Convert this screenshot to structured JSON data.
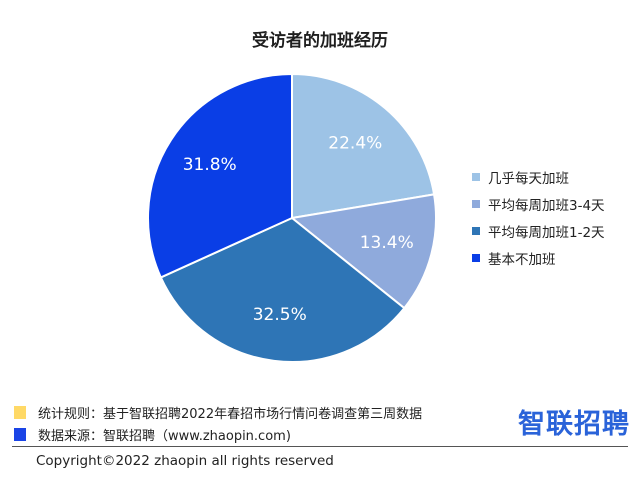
{
  "chart_data": {
    "type": "pie",
    "title": "受访者的加班经历",
    "slices": [
      {
        "label": "几乎每天加班",
        "value": 22.4,
        "display": "22.4%",
        "color": "#9dc3e6"
      },
      {
        "label": "平均每周加班3-4天",
        "value": 13.4,
        "display": "13.4%",
        "color": "#8faadc"
      },
      {
        "label": "平均每周加班1-2天",
        "value": 32.5,
        "display": "32.5%",
        "color": "#2e75b6"
      },
      {
        "label": "基本不加班",
        "value": 31.8,
        "display": "31.8%",
        "color": "#0a3ee6"
      }
    ],
    "start": "12 o'clock",
    "direction": "clockwise",
    "legend_position": "right"
  },
  "footer": {
    "stat_rule": {
      "text": "统计规则：基于智联招聘2022年春招市场行情问卷调查第三周数据",
      "color": "#ffd966"
    },
    "data_source": {
      "text": "数据来源：智联招聘（www.zhaopin.com)",
      "color": "#1a44e6"
    },
    "brand_logo": "智联招聘",
    "copyright": "Copyright©2022 zhaopin all rights reserved"
  }
}
